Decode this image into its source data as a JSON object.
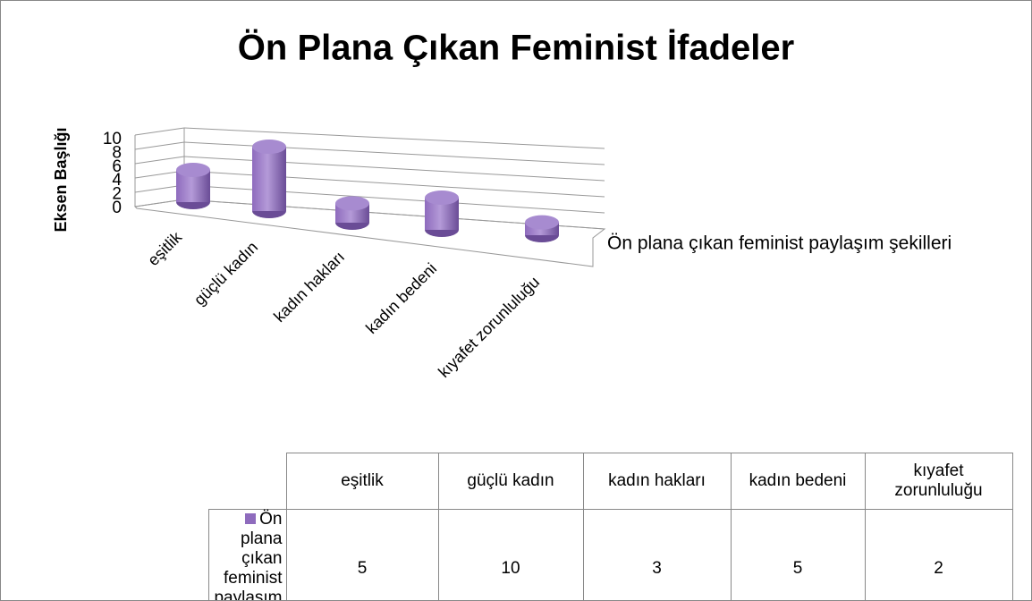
{
  "chart_data": {
    "type": "bar",
    "title": "Ön Plana Çıkan Feminist İfadeler",
    "y_label": "Eksen Başlığı",
    "categories": [
      "eşitlik",
      "güçlü kadın",
      "kadın hakları",
      "kadın bedeni",
      "kıyafet zorunluluğu"
    ],
    "series": [
      {
        "name": "Ön plana çıkan feminist paylaşım şekilleri",
        "color": "#8e6bbd",
        "values": [
          5,
          10,
          3,
          5,
          2
        ]
      }
    ],
    "ylim": [
      0,
      10
    ],
    "yticks": [
      0,
      2,
      4,
      6,
      8,
      10
    ],
    "grid": true
  }
}
